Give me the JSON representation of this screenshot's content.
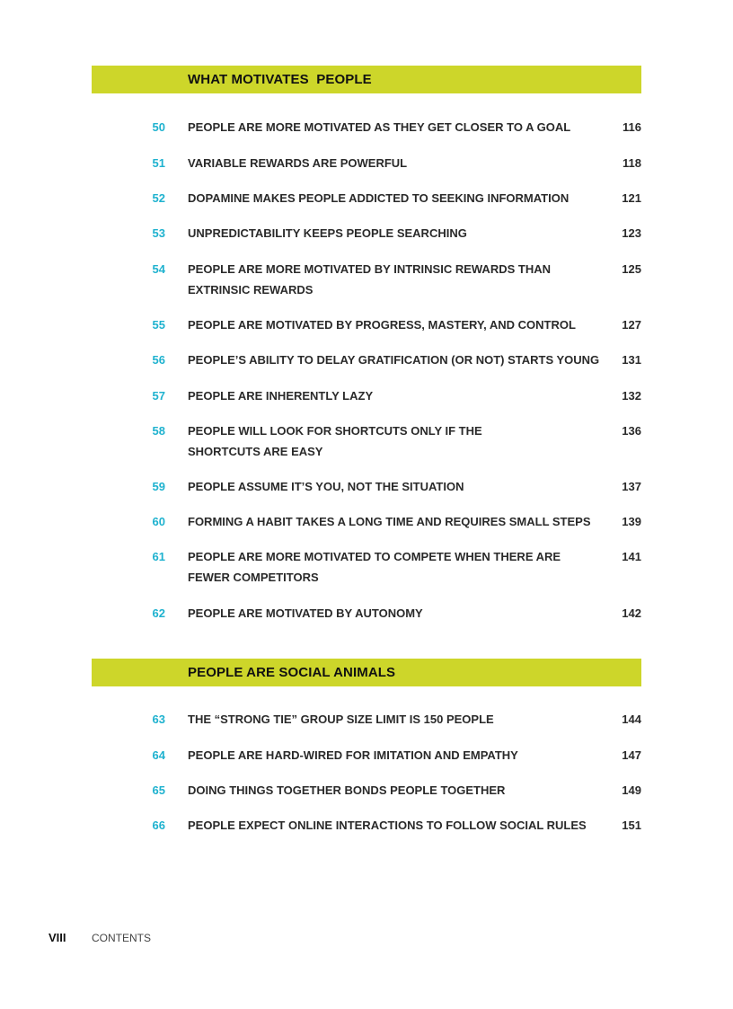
{
  "sections": [
    {
      "title": "WHAT MOTIVATES  PEOPLE",
      "entries": [
        {
          "num": "50",
          "title": [
            "PEOPLE ARE MORE MOTIVATED AS THEY GET CLOSER TO A GOAL"
          ],
          "page": "116"
        },
        {
          "num": "51",
          "title": [
            "VARIABLE REWARDS ARE POWERFUL"
          ],
          "page": "118"
        },
        {
          "num": "52",
          "title": [
            "DOPAMINE MAKES PEOPLE ADDICTED TO SEEKING INFORMATION"
          ],
          "page": "121"
        },
        {
          "num": "53",
          "title": [
            "UNPREDICTABILITY KEEPS PEOPLE SEARCHING"
          ],
          "page": "123"
        },
        {
          "num": "54",
          "title": [
            "PEOPLE ARE MORE MOTIVATED BY INTRINSIC REWARDS THAN",
            "EXTRINSIC REWARDS"
          ],
          "page": "125"
        },
        {
          "num": "55",
          "title": [
            "PEOPLE ARE MOTIVATED BY PROGRESS, MASTERY, AND CONTROL"
          ],
          "page": "127"
        },
        {
          "num": "56",
          "title": [
            "PEOPLE’S ABILITY TO DELAY GRATIFICATION (OR NOT) STARTS YOUNG"
          ],
          "page": "131"
        },
        {
          "num": "57",
          "title": [
            "PEOPLE ARE INHERENTLY LAZY"
          ],
          "page": "132"
        },
        {
          "num": "58",
          "title": [
            "PEOPLE WILL LOOK FOR SHORTCUTS ONLY IF THE",
            "SHORTCUTS ARE EASY"
          ],
          "page": "136"
        },
        {
          "num": "59",
          "title": [
            "PEOPLE ASSUME IT’S YOU, NOT THE SITUATION"
          ],
          "page": "137"
        },
        {
          "num": "60",
          "title": [
            "FORMING A HABIT TAKES A LONG TIME AND REQUIRES SMALL STEPS"
          ],
          "page": "139"
        },
        {
          "num": "61",
          "title": [
            "PEOPLE ARE MORE MOTIVATED TO COMPETE WHEN THERE ARE",
            "FEWER COMPETITORS"
          ],
          "page": "141"
        },
        {
          "num": "62",
          "title": [
            "PEOPLE ARE MOTIVATED BY AUTONOMY"
          ],
          "page": "142"
        }
      ]
    },
    {
      "title": "PEOPLE ARE SOCIAL ANIMALS",
      "entries": [
        {
          "num": "63",
          "title": [
            "THE “STRONG TIE” GROUP SIZE LIMIT IS 150 PEOPLE"
          ],
          "page": "144"
        },
        {
          "num": "64",
          "title": [
            "PEOPLE ARE HARD-WIRED FOR IMITATION AND EMPATHY"
          ],
          "page": "147"
        },
        {
          "num": "65",
          "title": [
            "DOING THINGS TOGETHER BONDS PEOPLE TOGETHER"
          ],
          "page": "149"
        },
        {
          "num": "66",
          "title": [
            "PEOPLE EXPECT ONLINE INTERACTIONS TO FOLLOW SOCIAL RULES"
          ],
          "page": "151"
        }
      ]
    }
  ],
  "footer": {
    "page_number": "VIII",
    "label": "CONTENTS"
  },
  "colors": {
    "band": "#cdd62a",
    "chapter_number": "#1fb2cf",
    "text": "#2a2a2a"
  }
}
